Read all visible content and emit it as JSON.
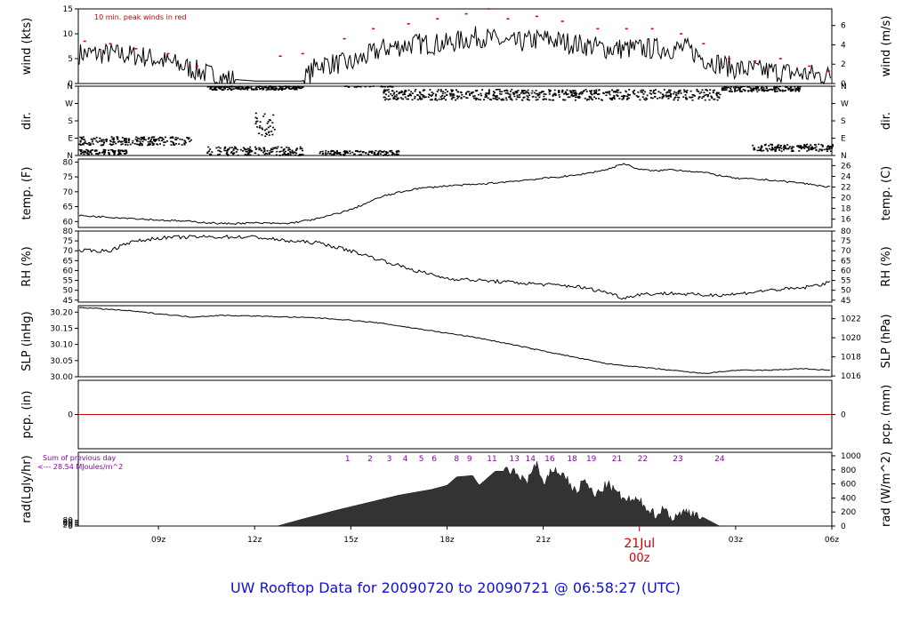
{
  "footer": {
    "title": "UW Rooftop Data for 20090720  to  20090721 @ 06:58:27  (UTC)",
    "title_color": "#1010d0"
  },
  "wind_panel": {
    "note": "10 min. peak winds in red"
  },
  "rad_panel": {
    "sum_line1": "Sum of previous day",
    "sum_line2": "<--- 28.54 MJoules/m^2"
  },
  "x_axis": {
    "date_label": "21Jul",
    "date_sub": "00z"
  },
  "colors": {
    "note": "#cc0000",
    "peaks": "#dd0000",
    "precip": "#cc0000",
    "hours": "#8800aa",
    "date": "#cc0000",
    "trace": "#000000"
  },
  "chart_data": [
    {
      "type": "line",
      "name": "wind",
      "ylabel_left": "wind (kts)",
      "ylabel_right": "wind (m/s)",
      "ylim": [
        0,
        15
      ],
      "yticks_left": [
        "0",
        "5",
        "10",
        "15"
      ],
      "yticks_right": [
        "0",
        "2",
        "4",
        "6"
      ],
      "xlim": [
        6.5,
        30.0
      ],
      "x": [
        6.5,
        7.5,
        8.5,
        9.5,
        10.0,
        10.5,
        11.0,
        12.0,
        13.0,
        13.5,
        14.0,
        15.0,
        16.0,
        17.0,
        18.0,
        19.0,
        20.0,
        21.0,
        22.0,
        23.0,
        24.0,
        25.0,
        25.5,
        26.0,
        27.0,
        28.0,
        29.0,
        30.0
      ],
      "values": [
        6,
        6,
        5.5,
        4,
        3,
        2,
        1,
        0.5,
        0.5,
        0.5,
        4,
        4,
        7,
        8,
        8,
        9.5,
        8,
        9,
        8,
        7,
        7,
        7,
        7,
        5,
        3,
        2.5,
        2,
        1.5
      ],
      "peaks": {
        "x": [
          6.7,
          7.5,
          8.3,
          9.3,
          10.2,
          12.8,
          13.5,
          14.8,
          15.7,
          16.8,
          17.7,
          18.6,
          19.3,
          19.9,
          20.8,
          21.6,
          22.7,
          23.6,
          24.4,
          25.3,
          26.0,
          26.8,
          27.6,
          28.4,
          29.3,
          29.9
        ],
        "values": [
          8.5,
          8,
          7,
          6,
          3.5,
          5.5,
          6,
          9,
          11,
          12,
          13,
          14,
          15,
          13,
          13.5,
          12.5,
          11,
          11,
          11,
          10,
          8,
          5,
          4.5,
          5,
          3.5,
          2.5
        ]
      }
    },
    {
      "type": "scatter",
      "name": "direction",
      "ylabel_left": "dir.",
      "ylabel_right": "dir.",
      "ylim": [
        0,
        360
      ],
      "yticks_left": [
        "N",
        "E",
        "S",
        "W",
        "N"
      ],
      "yticks_right": [
        "N",
        "E",
        "S",
        "W",
        "N"
      ],
      "xlim": [
        6.5,
        30.0
      ],
      "clusters": [
        {
          "from": 6.5,
          "to": 10.0,
          "center": 75,
          "spread": 22
        },
        {
          "from": 6.5,
          "to": 8.0,
          "center": 18,
          "spread": 12
        },
        {
          "from": 10.5,
          "to": 13.5,
          "center": 20,
          "spread": 25
        },
        {
          "from": 14.0,
          "to": 16.5,
          "center": 10,
          "spread": 15
        },
        {
          "from": 10.5,
          "to": 13.5,
          "center": 350,
          "spread": 10
        },
        {
          "from": 16.0,
          "to": 26.5,
          "center": 315,
          "spread": 28
        },
        {
          "from": 26.5,
          "to": 29.0,
          "center": 345,
          "spread": 14
        },
        {
          "from": 27.5,
          "to": 30.0,
          "center": 40,
          "spread": 18
        },
        {
          "from": 12.0,
          "to": 12.6,
          "center": 160,
          "spread": 60
        }
      ]
    },
    {
      "type": "line",
      "name": "temperature",
      "ylabel_left": "temp. (F)",
      "ylabel_right": "temp. (C)",
      "ylim": [
        58,
        81
      ],
      "yticks_left": [
        "60",
        "65",
        "70",
        "75",
        "80"
      ],
      "yticks_right": [
        "16",
        "18",
        "20",
        "22",
        "24",
        "26"
      ],
      "xlim": [
        6.5,
        30.0
      ],
      "x": [
        6.5,
        8,
        9,
        10,
        11,
        12,
        13,
        14,
        15,
        16,
        17,
        18,
        19,
        20,
        21,
        22,
        23,
        23.5,
        24,
        24.5,
        25,
        26,
        27,
        28,
        29,
        30
      ],
      "values": [
        62,
        61.2,
        60.5,
        60,
        59.3,
        59.5,
        59.3,
        61,
        64,
        68.5,
        71,
        72,
        72.5,
        73.5,
        74.5,
        75.5,
        77.5,
        79.5,
        77.5,
        77,
        77.5,
        76.5,
        74.5,
        74,
        73,
        71.5
      ]
    },
    {
      "type": "line",
      "name": "relative_humidity",
      "ylabel_left": "RH (%)",
      "ylabel_right": "RH (%)",
      "ylim": [
        44,
        80
      ],
      "yticks_left": [
        "45",
        "50",
        "55",
        "60",
        "65",
        "70",
        "75",
        "80"
      ],
      "yticks_right": [
        "45",
        "50",
        "55",
        "60",
        "65",
        "70",
        "75",
        "80"
      ],
      "xlim": [
        6.5,
        30.0
      ],
      "x": [
        6.5,
        7.5,
        8,
        9,
        10,
        11,
        12,
        13,
        14,
        15,
        16,
        17,
        18,
        19,
        20,
        21,
        22,
        23,
        23.5,
        24,
        25,
        26,
        27,
        28,
        29,
        30
      ],
      "values": [
        70,
        70,
        74,
        76.5,
        77,
        77,
        77,
        75,
        74,
        70,
        65,
        60,
        56,
        55,
        54,
        53,
        52,
        49,
        46,
        48,
        48.5,
        47.5,
        48,
        50,
        51,
        54
      ]
    },
    {
      "type": "line",
      "name": "sea_level_pressure",
      "ylabel_left": "SLP (inHg)",
      "ylabel_right": "SLP (hPa)",
      "ylim": [
        30.0,
        30.22
      ],
      "yticks_left": [
        "30.00",
        "30.05",
        "30.10",
        "30.15",
        "30.20"
      ],
      "yticks_right": [
        "1016",
        "1018",
        "1020",
        "1022"
      ],
      "xlim": [
        6.5,
        30.0
      ],
      "x": [
        6.5,
        8,
        9,
        10,
        11,
        12,
        13,
        14,
        15,
        16,
        17,
        18,
        19,
        20,
        21,
        22,
        23,
        24,
        25,
        26,
        27,
        28,
        29,
        30
      ],
      "values": [
        30.215,
        30.205,
        30.195,
        30.185,
        30.19,
        30.188,
        30.185,
        30.182,
        30.175,
        30.165,
        30.15,
        30.135,
        30.12,
        30.1,
        30.08,
        30.06,
        30.04,
        30.03,
        30.02,
        30.01,
        30.02,
        30.02,
        30.025,
        30.02
      ]
    },
    {
      "type": "line",
      "name": "precipitation",
      "ylabel_left": "pcp. (in)",
      "ylabel_right": "pcp. (mm)",
      "ylim": [
        -1,
        1
      ],
      "yticks_left": [
        "0"
      ],
      "yticks_right": [
        "0"
      ],
      "xlim": [
        6.5,
        30.0
      ],
      "x": [
        6.5,
        30.0
      ],
      "values": [
        0,
        0
      ]
    },
    {
      "type": "area",
      "name": "solar_radiation",
      "ylabel_left": "rad(Lgly/hr)",
      "ylabel_right": "rad (W/m^2)",
      "ylim": [
        0,
        1050
      ],
      "yticks_left": [
        "0",
        "20",
        "40",
        "60",
        "80"
      ],
      "yticks_right": [
        "0",
        "200",
        "400",
        "600",
        "800",
        "1000"
      ],
      "xlim": [
        6.5,
        30.0
      ],
      "x": [
        6.5,
        12.7,
        13.5,
        14.5,
        15.5,
        16.5,
        17.5,
        18.0,
        18.3,
        18.8,
        19.0,
        19.5,
        20.0,
        20.5,
        20.8,
        21.0,
        21.3,
        21.7,
        22.0,
        22.3,
        22.6,
        23.0,
        23.5,
        24.0,
        24.5,
        24.8,
        25.0,
        25.5,
        26.0,
        26.5,
        30.0
      ],
      "values": [
        0,
        0,
        100,
        220,
        330,
        440,
        520,
        580,
        700,
        720,
        580,
        780,
        780,
        640,
        900,
        550,
        820,
        700,
        480,
        650,
        420,
        600,
        380,
        350,
        160,
        260,
        100,
        220,
        120,
        0,
        0
      ],
      "hour_marks": [
        "1",
        "2",
        "3",
        "4",
        "5",
        "6",
        "8",
        "9",
        "11",
        "13",
        "14",
        "16",
        "18",
        "19",
        "21",
        "22",
        "23",
        "24"
      ],
      "hour_x": [
        14.9,
        15.6,
        16.2,
        16.7,
        17.2,
        17.6,
        18.3,
        18.7,
        19.4,
        20.1,
        20.6,
        21.2,
        21.9,
        22.5,
        23.3,
        24.1,
        25.2,
        26.5
      ]
    }
  ],
  "x_ticks": [
    {
      "x": 9,
      "label": "09z"
    },
    {
      "x": 12,
      "label": "12z"
    },
    {
      "x": 15,
      "label": "15z"
    },
    {
      "x": 18,
      "label": "18z"
    },
    {
      "x": 21,
      "label": "21z"
    },
    {
      "x": 27,
      "label": "03z"
    },
    {
      "x": 30,
      "label": "06z"
    }
  ],
  "x_midnight": 24
}
